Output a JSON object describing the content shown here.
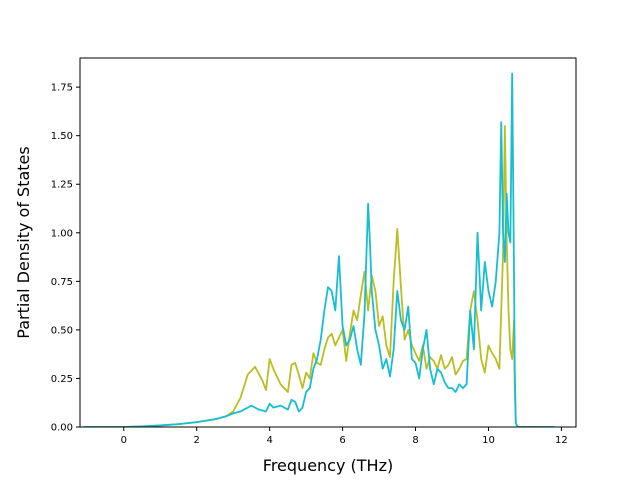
{
  "chart_data": {
    "type": "line",
    "title": "",
    "xlabel": "Frequency (THz)",
    "ylabel": "Partial Density of States",
    "xlim": [
      -1.2,
      12.4
    ],
    "ylim": [
      0,
      1.9
    ],
    "xticks": [
      0,
      2,
      4,
      6,
      8,
      10,
      12
    ],
    "yticks": [
      0.0,
      0.25,
      0.5,
      0.75,
      1.0,
      1.25,
      1.5,
      1.75
    ],
    "xtick_labels": [
      "0",
      "2",
      "4",
      "6",
      "8",
      "10",
      "12"
    ],
    "ytick_labels": [
      "0.00",
      "0.25",
      "0.50",
      "0.75",
      "1.00",
      "1.25",
      "1.50",
      "1.75"
    ],
    "grid": false,
    "legend": "none",
    "series": [
      {
        "color": "#bcbd22",
        "x": [
          -1.1,
          0.0,
          0.5,
          1.0,
          1.5,
          2.0,
          2.5,
          2.8,
          3.0,
          3.2,
          3.4,
          3.6,
          3.8,
          3.9,
          4.0,
          4.1,
          4.3,
          4.5,
          4.6,
          4.7,
          4.8,
          4.9,
          5.0,
          5.1,
          5.2,
          5.3,
          5.4,
          5.5,
          5.6,
          5.7,
          5.8,
          5.9,
          6.0,
          6.1,
          6.2,
          6.3,
          6.4,
          6.5,
          6.6,
          6.7,
          6.8,
          6.9,
          7.0,
          7.1,
          7.2,
          7.3,
          7.4,
          7.5,
          7.6,
          7.7,
          7.8,
          7.9,
          8.0,
          8.1,
          8.2,
          8.3,
          8.4,
          8.5,
          8.6,
          8.7,
          8.8,
          8.9,
          9.0,
          9.1,
          9.2,
          9.3,
          9.4,
          9.5,
          9.6,
          9.7,
          9.8,
          9.9,
          10.0,
          10.1,
          10.2,
          10.3,
          10.4,
          10.45,
          10.5,
          10.55,
          10.6,
          10.65,
          10.7,
          10.72,
          10.75,
          10.8,
          11.0,
          11.8
        ],
        "y": [
          0.0,
          0.0,
          0.003,
          0.008,
          0.015,
          0.025,
          0.04,
          0.055,
          0.08,
          0.15,
          0.27,
          0.31,
          0.24,
          0.19,
          0.35,
          0.3,
          0.22,
          0.18,
          0.32,
          0.33,
          0.27,
          0.2,
          0.28,
          0.25,
          0.38,
          0.33,
          0.32,
          0.4,
          0.46,
          0.48,
          0.42,
          0.46,
          0.5,
          0.34,
          0.48,
          0.6,
          0.55,
          0.68,
          0.8,
          0.6,
          0.78,
          0.7,
          0.52,
          0.57,
          0.42,
          0.36,
          0.75,
          1.02,
          0.72,
          0.45,
          0.5,
          0.42,
          0.38,
          0.34,
          0.42,
          0.3,
          0.36,
          0.34,
          0.3,
          0.37,
          0.3,
          0.32,
          0.36,
          0.27,
          0.3,
          0.34,
          0.35,
          0.6,
          0.7,
          0.55,
          0.35,
          0.28,
          0.42,
          0.38,
          0.35,
          0.3,
          0.9,
          1.55,
          0.95,
          0.6,
          0.4,
          0.35,
          0.55,
          0.2,
          0.02,
          0.0,
          0.0,
          0.0
        ]
      },
      {
        "color": "#17becf",
        "x": [
          -1.1,
          0.0,
          0.5,
          1.0,
          1.5,
          2.0,
          2.5,
          2.8,
          3.0,
          3.2,
          3.4,
          3.5,
          3.7,
          3.9,
          4.0,
          4.1,
          4.3,
          4.5,
          4.6,
          4.7,
          4.8,
          4.9,
          5.0,
          5.1,
          5.2,
          5.3,
          5.4,
          5.5,
          5.6,
          5.7,
          5.8,
          5.9,
          6.0,
          6.1,
          6.2,
          6.3,
          6.4,
          6.5,
          6.6,
          6.7,
          6.75,
          6.8,
          6.9,
          7.0,
          7.1,
          7.2,
          7.3,
          7.4,
          7.5,
          7.6,
          7.7,
          7.8,
          7.9,
          8.0,
          8.1,
          8.2,
          8.3,
          8.4,
          8.5,
          8.6,
          8.7,
          8.8,
          8.9,
          9.0,
          9.1,
          9.2,
          9.3,
          9.4,
          9.5,
          9.6,
          9.7,
          9.8,
          9.9,
          10.0,
          10.1,
          10.2,
          10.3,
          10.35,
          10.4,
          10.45,
          10.5,
          10.55,
          10.6,
          10.65,
          10.7,
          10.72,
          10.75,
          10.8,
          11.0,
          11.8
        ],
        "y": [
          0.0,
          0.0,
          0.003,
          0.008,
          0.015,
          0.025,
          0.04,
          0.055,
          0.07,
          0.08,
          0.1,
          0.11,
          0.09,
          0.08,
          0.12,
          0.1,
          0.11,
          0.09,
          0.14,
          0.13,
          0.08,
          0.1,
          0.18,
          0.2,
          0.3,
          0.35,
          0.45,
          0.6,
          0.72,
          0.7,
          0.6,
          0.88,
          0.52,
          0.42,
          0.45,
          0.52,
          0.4,
          0.32,
          0.58,
          1.15,
          0.95,
          0.7,
          0.5,
          0.42,
          0.3,
          0.35,
          0.26,
          0.4,
          0.7,
          0.55,
          0.5,
          0.62,
          0.35,
          0.33,
          0.25,
          0.4,
          0.5,
          0.3,
          0.22,
          0.3,
          0.28,
          0.23,
          0.2,
          0.2,
          0.18,
          0.22,
          0.2,
          0.22,
          0.6,
          0.4,
          1.0,
          0.6,
          0.85,
          0.7,
          0.62,
          0.75,
          1.0,
          1.57,
          1.0,
          0.85,
          1.2,
          1.0,
          0.95,
          1.82,
          0.8,
          0.3,
          0.02,
          0.0,
          0.0,
          0.0
        ]
      }
    ]
  }
}
